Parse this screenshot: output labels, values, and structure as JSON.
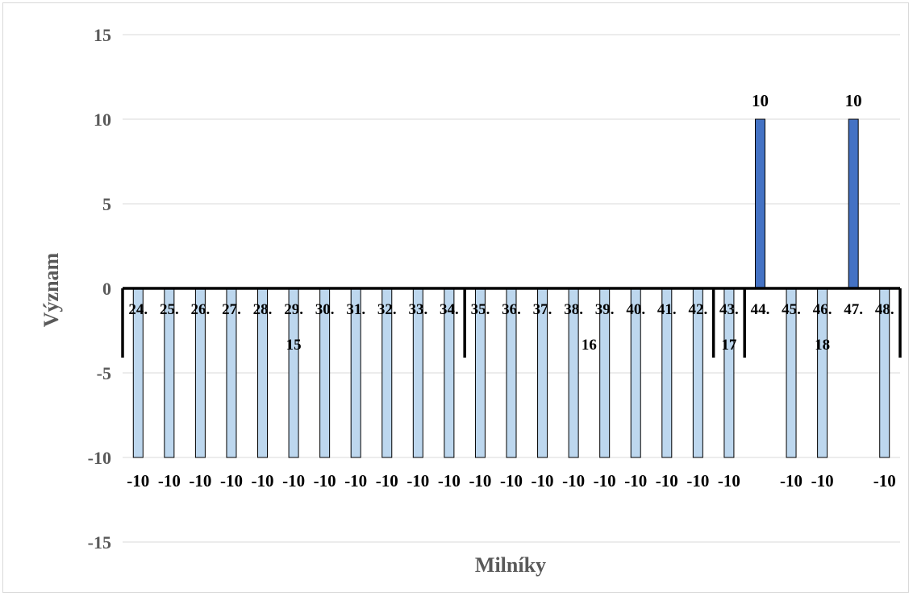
{
  "chart_data": {
    "type": "bar",
    "xlabel": "Milníky",
    "ylabel": "Význam",
    "ylim": [
      -15,
      15
    ],
    "yticks": [
      15,
      10,
      5,
      0,
      -5,
      -10,
      -15
    ],
    "grid": true,
    "categories": [
      "24.",
      "25.",
      "26.",
      "27.",
      "28.",
      "29.",
      "30.",
      "31.",
      "32.",
      "33.",
      "34.",
      "35.",
      "36.",
      "37.",
      "38.",
      "39.",
      "40.",
      "41.",
      "42.",
      "43.",
      "44.",
      "45.",
      "46.",
      "47.",
      "48."
    ],
    "groups": [
      {
        "label": "15",
        "start": 0,
        "end": 10
      },
      {
        "label": "16",
        "start": 11,
        "end": 18
      },
      {
        "label": "17",
        "start": 19,
        "end": 19
      },
      {
        "label": "18",
        "start": 20,
        "end": 24
      }
    ],
    "series": [
      {
        "values": [
          -10,
          -10,
          -10,
          -10,
          -10,
          -10,
          -10,
          -10,
          -10,
          -10,
          -10,
          -10,
          -10,
          -10,
          -10,
          -10,
          -10,
          -10,
          -10,
          -10,
          10,
          -10,
          -10,
          10,
          -10
        ]
      }
    ],
    "data_labels": [
      "-10",
      "-10",
      "-10",
      "-10",
      "-10",
      "-10",
      "-10",
      "-10",
      "-10",
      "-10",
      "-10",
      "-10",
      "-10",
      "-10",
      "-10",
      "-10",
      "-10",
      "-10",
      "-10",
      "-10",
      "10",
      "-10",
      "-10",
      "10",
      "-10"
    ],
    "colors": {
      "positive": "#4472c4",
      "negative": "#bdd7ee",
      "bar_stroke": "#000000",
      "grid": "#d9d9d9",
      "axis": "#000000"
    }
  }
}
